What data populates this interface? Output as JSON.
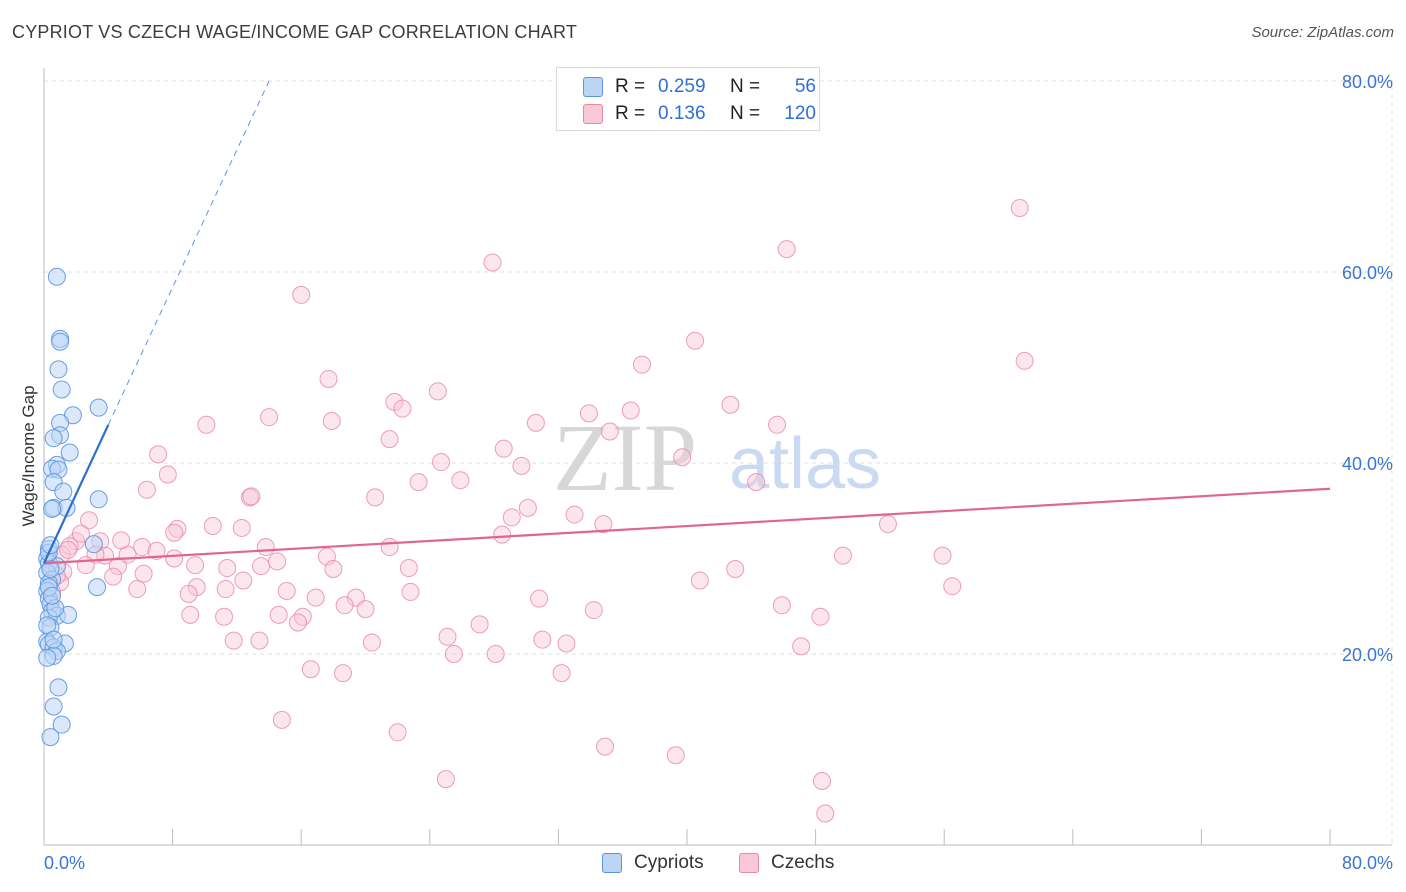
{
  "title": "CYPRIOT VS CZECH WAGE/INCOME GAP CORRELATION CHART",
  "source": "Source: ZipAtlas.com",
  "watermark": {
    "zip": "ZIP",
    "atlas": "atlas"
  },
  "colors": {
    "blue": "#5b95e0",
    "blue_fill": "#bcd5f5",
    "blue_line": "#2b6fd0",
    "pink": "#e987a6",
    "pink_fill": "#f9c8d7",
    "pink_line": "#e0668f",
    "grid": "#dfdfdf",
    "axis_value": "#3a74d4"
  },
  "legend_stats": [
    {
      "series": "Cypriots",
      "r_label": "R =",
      "r_value": "0.259",
      "n_label": "N =",
      "n_value": "56"
    },
    {
      "series": "Czechs",
      "r_label": "R =",
      "r_value": "0.136",
      "n_label": "N =",
      "n_value": "120"
    }
  ],
  "legend_bottom": [
    "Cypriots",
    "Czechs"
  ],
  "chart_data": {
    "type": "scatter",
    "title": "CYPRIOT VS CZECH WAGE/INCOME GAP CORRELATION CHART",
    "xlabel": "",
    "ylabel": "Wage/Income Gap",
    "xlim": [
      0,
      80
    ],
    "ylim": [
      0,
      80
    ],
    "x_tick_labels": [
      "0.0%",
      "80.0%"
    ],
    "y_tick_labels": [
      "20.0%",
      "40.0%",
      "60.0%",
      "80.0%"
    ],
    "y_ticks": [
      20,
      40,
      60,
      80
    ],
    "grid": true,
    "legend": "top-center",
    "series": [
      {
        "name": "Cypriots",
        "r": 0.259,
        "n": 56,
        "trend_solid": [
          [
            0,
            29.5
          ],
          [
            4,
            44
          ]
        ],
        "trend_dashed": [
          [
            4,
            44
          ],
          [
            14,
            80
          ]
        ],
        "points": [
          [
            0.8,
            59.5
          ],
          [
            1.0,
            53.0
          ],
          [
            1.0,
            52.7
          ],
          [
            0.9,
            49.8
          ],
          [
            1.1,
            47.7
          ],
          [
            3.4,
            45.8
          ],
          [
            1.8,
            45.0
          ],
          [
            1.0,
            44.2
          ],
          [
            1.0,
            42.9
          ],
          [
            0.6,
            42.6
          ],
          [
            1.6,
            41.1
          ],
          [
            0.8,
            39.8
          ],
          [
            0.5,
            39.4
          ],
          [
            0.9,
            39.3
          ],
          [
            0.6,
            38.0
          ],
          [
            1.2,
            37.0
          ],
          [
            3.4,
            36.2
          ],
          [
            0.6,
            35.3
          ],
          [
            1.4,
            35.3
          ],
          [
            0.5,
            35.2
          ],
          [
            3.1,
            31.5
          ],
          [
            0.3,
            31.0
          ],
          [
            0.2,
            30.0
          ],
          [
            0.3,
            29.5
          ],
          [
            0.8,
            29.2
          ],
          [
            0.2,
            28.5
          ],
          [
            0.5,
            27.8
          ],
          [
            0.3,
            27.4
          ],
          [
            3.3,
            27.0
          ],
          [
            0.2,
            26.6
          ],
          [
            0.3,
            25.8
          ],
          [
            0.4,
            25.2
          ],
          [
            0.5,
            24.5
          ],
          [
            0.8,
            24.0
          ],
          [
            0.3,
            23.8
          ],
          [
            1.5,
            24.1
          ],
          [
            0.4,
            22.8
          ],
          [
            0.2,
            21.3
          ],
          [
            1.3,
            21.1
          ],
          [
            0.3,
            21.0
          ],
          [
            0.6,
            20.7
          ],
          [
            0.8,
            20.3
          ],
          [
            0.6,
            19.8
          ],
          [
            0.2,
            19.6
          ],
          [
            0.9,
            16.5
          ],
          [
            0.6,
            14.5
          ],
          [
            1.1,
            12.6
          ],
          [
            0.4,
            11.3
          ],
          [
            0.3,
            27.0
          ],
          [
            0.4,
            28.9
          ],
          [
            0.3,
            30.6
          ],
          [
            0.7,
            24.8
          ],
          [
            0.5,
            26.1
          ],
          [
            0.2,
            23.0
          ],
          [
            0.6,
            21.5
          ],
          [
            0.4,
            31.4
          ]
        ]
      },
      {
        "name": "Czechs",
        "r": 0.136,
        "n": 120,
        "trend_solid": [
          [
            0,
            29.5
          ],
          [
            80,
            37.3
          ]
        ],
        "points": [
          [
            60.7,
            66.7
          ],
          [
            46.2,
            62.4
          ],
          [
            27.9,
            61.0
          ],
          [
            16.0,
            57.6
          ],
          [
            40.5,
            52.8
          ],
          [
            61.0,
            50.7
          ],
          [
            37.2,
            50.3
          ],
          [
            17.7,
            48.8
          ],
          [
            24.5,
            47.5
          ],
          [
            21.8,
            46.4
          ],
          [
            22.3,
            45.7
          ],
          [
            36.5,
            45.5
          ],
          [
            42.7,
            46.1
          ],
          [
            33.9,
            45.2
          ],
          [
            14.0,
            44.8
          ],
          [
            17.9,
            44.4
          ],
          [
            30.6,
            44.2
          ],
          [
            10.1,
            44.0
          ],
          [
            45.6,
            44.0
          ],
          [
            21.5,
            42.5
          ],
          [
            35.2,
            43.3
          ],
          [
            28.6,
            41.5
          ],
          [
            7.1,
            40.9
          ],
          [
            39.7,
            40.6
          ],
          [
            24.7,
            40.1
          ],
          [
            29.7,
            39.7
          ],
          [
            7.7,
            38.8
          ],
          [
            25.9,
            38.2
          ],
          [
            23.3,
            38.0
          ],
          [
            44.3,
            38.0
          ],
          [
            6.4,
            37.2
          ],
          [
            12.8,
            36.4
          ],
          [
            20.6,
            36.4
          ],
          [
            12.9,
            36.5
          ],
          [
            30.1,
            35.3
          ],
          [
            33.0,
            34.6
          ],
          [
            29.1,
            34.3
          ],
          [
            34.8,
            33.6
          ],
          [
            52.5,
            33.6
          ],
          [
            2.8,
            34.0
          ],
          [
            10.5,
            33.4
          ],
          [
            12.3,
            33.2
          ],
          [
            8.3,
            33.1
          ],
          [
            8.1,
            32.7
          ],
          [
            28.5,
            32.5
          ],
          [
            2.0,
            31.8
          ],
          [
            3.5,
            31.8
          ],
          [
            1.6,
            31.3
          ],
          [
            6.1,
            31.2
          ],
          [
            13.8,
            31.2
          ],
          [
            21.5,
            31.2
          ],
          [
            5.2,
            30.4
          ],
          [
            1.1,
            30.4
          ],
          [
            3.8,
            30.3
          ],
          [
            17.6,
            30.2
          ],
          [
            3.2,
            30.4
          ],
          [
            8.1,
            30.0
          ],
          [
            49.7,
            30.3
          ],
          [
            55.9,
            30.3
          ],
          [
            13.5,
            29.2
          ],
          [
            14.5,
            29.7
          ],
          [
            9.4,
            29.3
          ],
          [
            11.4,
            29.0
          ],
          [
            4.6,
            29.2
          ],
          [
            18.0,
            28.9
          ],
          [
            22.7,
            29.0
          ],
          [
            43.0,
            28.9
          ],
          [
            1.2,
            28.6
          ],
          [
            6.2,
            28.4
          ],
          [
            4.3,
            28.1
          ],
          [
            40.8,
            27.7
          ],
          [
            1.0,
            27.5
          ],
          [
            12.4,
            27.7
          ],
          [
            9.5,
            27.0
          ],
          [
            5.8,
            26.8
          ],
          [
            11.3,
            26.8
          ],
          [
            15.1,
            26.6
          ],
          [
            22.8,
            26.5
          ],
          [
            56.5,
            27.1
          ],
          [
            9.0,
            26.3
          ],
          [
            16.9,
            25.9
          ],
          [
            19.4,
            25.9
          ],
          [
            30.8,
            25.8
          ],
          [
            18.7,
            25.1
          ],
          [
            20.0,
            24.7
          ],
          [
            34.2,
            24.6
          ],
          [
            45.9,
            25.1
          ],
          [
            9.1,
            24.1
          ],
          [
            14.6,
            24.1
          ],
          [
            16.1,
            23.9
          ],
          [
            11.2,
            23.9
          ],
          [
            15.8,
            23.3
          ],
          [
            27.1,
            23.1
          ],
          [
            48.3,
            23.9
          ],
          [
            25.1,
            21.8
          ],
          [
            31.0,
            21.5
          ],
          [
            32.5,
            21.1
          ],
          [
            11.8,
            21.4
          ],
          [
            13.4,
            21.4
          ],
          [
            20.4,
            21.2
          ],
          [
            47.1,
            20.8
          ],
          [
            28.1,
            20.0
          ],
          [
            25.5,
            20.0
          ],
          [
            16.6,
            18.4
          ],
          [
            18.6,
            18.0
          ],
          [
            32.2,
            18.0
          ],
          [
            14.8,
            13.1
          ],
          [
            22.0,
            11.8
          ],
          [
            34.9,
            10.3
          ],
          [
            39.3,
            9.4
          ],
          [
            25.0,
            6.9
          ],
          [
            48.4,
            6.7
          ],
          [
            48.6,
            3.3
          ],
          [
            0.5,
            26.5
          ],
          [
            2.3,
            32.6
          ],
          [
            0.8,
            28.2
          ],
          [
            1.5,
            30.9
          ],
          [
            2.6,
            29.3
          ],
          [
            7.0,
            30.8
          ],
          [
            4.8,
            31.9
          ]
        ]
      }
    ]
  }
}
